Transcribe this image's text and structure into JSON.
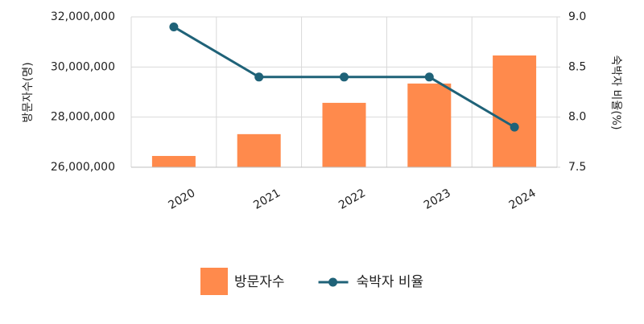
{
  "chart_data": {
    "type": "bar-line",
    "categories": [
      "2020",
      "2021",
      "2022",
      "2023",
      "2024"
    ],
    "series": [
      {
        "name": "방문자수",
        "type": "bar",
        "color": "#ff8a4c",
        "values": [
          26450000,
          27320000,
          28570000,
          29340000,
          30460000
        ]
      },
      {
        "name": "숙박자 비율",
        "type": "line",
        "axis": "y2",
        "color": "#1f6278",
        "values": [
          8.9,
          8.4,
          8.4,
          8.4,
          7.9
        ]
      }
    ],
    "ylabel": "방문자수(명)",
    "y2label": "숙박자 비율(%)",
    "ylim": [
      26000000,
      32000000
    ],
    "yticks": [
      {
        "value": 26000000,
        "label": "26,000,000"
      },
      {
        "value": 28000000,
        "label": "28,000,000"
      },
      {
        "value": 30000000,
        "label": "30,000,000"
      },
      {
        "value": 32000000,
        "label": "32,000,000"
      }
    ],
    "y2lim": [
      7.5,
      9.0
    ],
    "y2ticks": [
      7.5,
      {
        "value": 8,
        "label": "8.0"
      },
      8.5,
      {
        "value": 9,
        "label": "9.0"
      }
    ],
    "grid": true
  }
}
